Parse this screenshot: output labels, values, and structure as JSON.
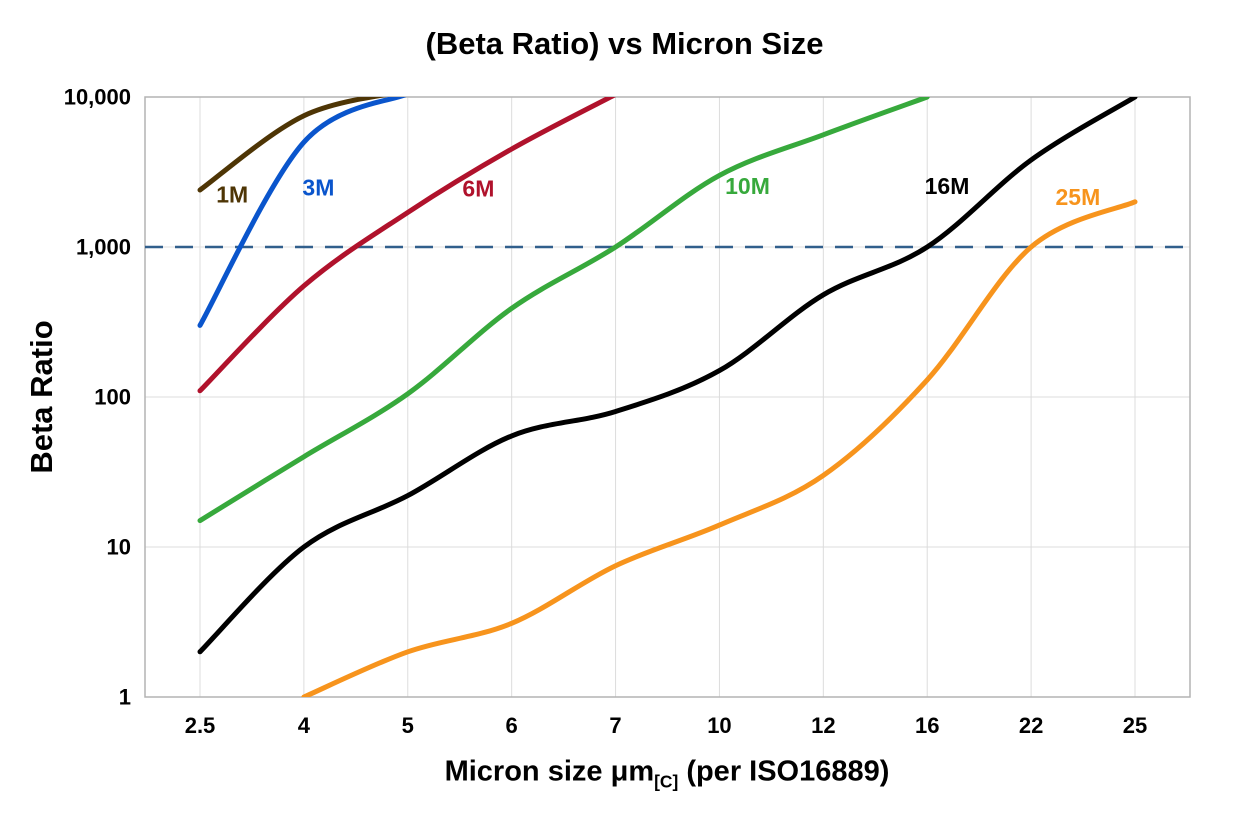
{
  "title": "(Beta Ratio) vs Micron Size",
  "axes": {
    "x": {
      "label_prefix": "Micron size μm",
      "label_subscript": "[C]",
      "label_suffix": " (per ISO16889)",
      "tick_labels": [
        "2.5",
        "4",
        "5",
        "6",
        "7",
        "10",
        "12",
        "16",
        "22",
        "25"
      ]
    },
    "y": {
      "label": "Beta Ratio",
      "tick_labels": [
        "1",
        "10",
        "100",
        "1,000",
        "10,000"
      ]
    }
  },
  "colors": {
    "grid": "#DCDCDC",
    "plot_border": "#B3B3B3",
    "reference_line": "#315F8C",
    "text": "#000000",
    "background": "#FFFFFF"
  },
  "chart_data": {
    "type": "line",
    "title": "(Beta Ratio) vs Micron Size",
    "xlabel": "Micron size μm[C] (per ISO16889)",
    "ylabel": "Beta Ratio",
    "x_scale": "categorical",
    "y_scale": "log",
    "ylim": [
      1,
      10000
    ],
    "y_ticks": [
      1,
      10,
      100,
      1000,
      10000
    ],
    "categories": [
      2.5,
      4,
      5,
      6,
      7,
      10,
      12,
      16,
      22,
      25
    ],
    "grid": true,
    "legend_position": "inline-labels",
    "reference_line": {
      "y": 1000,
      "style": "dashed"
    },
    "series": [
      {
        "name": "1M",
        "color": "#4E3505",
        "values": [
          2400,
          7500,
          11000,
          null,
          null,
          null,
          null,
          null,
          null,
          null
        ],
        "label_pos": {
          "x": 0.31,
          "y": 2250
        }
      },
      {
        "name": "3M",
        "color": "#0A55CC",
        "values": [
          300,
          5000,
          10500,
          null,
          null,
          null,
          null,
          null,
          null,
          null
        ],
        "label_pos": {
          "x": 1.14,
          "y": 2500
        }
      },
      {
        "name": "6M",
        "color": "#B0122C",
        "values": [
          110,
          550,
          1700,
          4500,
          10400,
          null,
          null,
          null,
          null,
          null
        ],
        "label_pos": {
          "x": 2.68,
          "y": 2450
        }
      },
      {
        "name": "10M",
        "color": "#37A93C",
        "values": [
          15,
          40,
          105,
          390,
          1000,
          3000,
          5600,
          10000,
          null,
          null
        ],
        "label_pos": {
          "x": 5.27,
          "y": 2550
        }
      },
      {
        "name": "16M",
        "color": "#000000",
        "values": [
          2,
          10,
          22,
          55,
          80,
          150,
          480,
          1000,
          3800,
          10000
        ],
        "label_pos": {
          "x": 7.19,
          "y": 2550
        }
      },
      {
        "name": "25M",
        "color": "#F7941D",
        "values": [
          null,
          1,
          2,
          3.1,
          7.5,
          14,
          30,
          130,
          1000,
          2000
        ],
        "label_pos": {
          "x": 8.45,
          "y": 2150
        }
      }
    ]
  }
}
